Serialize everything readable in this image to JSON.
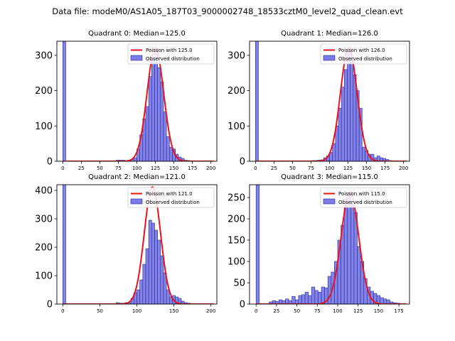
{
  "suptitle": "Data file: modeM0/AS1A05_187T03_9000002748_18533cztM0_level2_quad_clean.evt",
  "legend_labels": {
    "observed": "Observed distribution"
  },
  "colors": {
    "bar_fill": "#7b7bea",
    "bar_edge": "#2a2a8a",
    "poisson": "#e8141c"
  },
  "chart_data": [
    {
      "type": "bar",
      "title": "Quadrant 0: Median=125.0",
      "median": 125.0,
      "poisson_label": "Poisson with 125.0",
      "xlim": [
        -8,
        208
      ],
      "ylim": [
        0,
        340
      ],
      "xticks": [
        0,
        25,
        50,
        75,
        100,
        125,
        150,
        175,
        200
      ],
      "yticks": [
        0,
        100,
        200,
        300
      ],
      "bin_width": 4,
      "bins": [
        0,
        72,
        76,
        80,
        84,
        88,
        92,
        96,
        100,
        104,
        108,
        112,
        116,
        120,
        124,
        128,
        132,
        136,
        140,
        144,
        148,
        152,
        156,
        160,
        164,
        168,
        172
      ],
      "counts": [
        340,
        3,
        3,
        3,
        1,
        3,
        5,
        10,
        35,
        75,
        120,
        155,
        240,
        290,
        320,
        265,
        225,
        140,
        70,
        40,
        35,
        20,
        12,
        8,
        3,
        2,
        1
      ],
      "poisson_peak": 321
    },
    {
      "type": "bar",
      "title": "Quadrant 1: Median=126.0",
      "median": 126.0,
      "poisson_label": "Poisson with 126.0",
      "xlim": [
        -8,
        208
      ],
      "ylim": [
        0,
        340
      ],
      "xticks": [
        0,
        25,
        50,
        75,
        100,
        125,
        150,
        175,
        200
      ],
      "yticks": [
        0,
        100,
        200,
        300
      ],
      "bin_width": 4,
      "bins": [
        0,
        76,
        80,
        84,
        88,
        92,
        96,
        100,
        104,
        108,
        112,
        116,
        120,
        124,
        128,
        132,
        136,
        140,
        144,
        148,
        152,
        156,
        160,
        164,
        168,
        172,
        176,
        180
      ],
      "counts": [
        340,
        2,
        2,
        3,
        4,
        10,
        15,
        25,
        50,
        100,
        150,
        210,
        260,
        310,
        295,
        245,
        200,
        150,
        40,
        30,
        20,
        20,
        10,
        15,
        10,
        8,
        5,
        2
      ],
      "poisson_peak": 321
    },
    {
      "type": "bar",
      "title": "Quadrant 2: Median=121.0",
      "median": 121.0,
      "poisson_label": "Poisson with 121.0",
      "xlim": [
        -8,
        208
      ],
      "ylim": [
        0,
        420
      ],
      "xticks": [
        0,
        50,
        100,
        150,
        200
      ],
      "yticks": [
        0,
        100,
        200,
        300,
        400
      ],
      "bin_width": 4,
      "bins": [
        0,
        72,
        76,
        80,
        84,
        88,
        92,
        96,
        100,
        104,
        108,
        112,
        116,
        120,
        124,
        128,
        132,
        136,
        140,
        144,
        148,
        152,
        156,
        160,
        164,
        168
      ],
      "counts": [
        420,
        5,
        3,
        3,
        5,
        5,
        20,
        40,
        50,
        85,
        140,
        195,
        295,
        285,
        260,
        225,
        170,
        110,
        50,
        25,
        30,
        25,
        20,
        10,
        5,
        3
      ],
      "poisson_peak": 412
    },
    {
      "type": "bar",
      "title": "Quadrant 3: Median=115.0",
      "median": 115.0,
      "poisson_label": "Poisson with 115.0",
      "xlim": [
        -8,
        188
      ],
      "ylim": [
        0,
        280
      ],
      "xticks": [
        0,
        25,
        50,
        75,
        100,
        125,
        150,
        175
      ],
      "yticks": [
        0,
        50,
        100,
        150,
        200,
        250
      ],
      "bin_width": 4,
      "bins": [
        0,
        16,
        20,
        24,
        28,
        32,
        36,
        40,
        44,
        48,
        52,
        56,
        60,
        64,
        68,
        72,
        76,
        80,
        84,
        88,
        92,
        96,
        100,
        104,
        108,
        112,
        116,
        120,
        124,
        128,
        132,
        136,
        140,
        144,
        148,
        152,
        156,
        160,
        164,
        168,
        172
      ],
      "counts": [
        280,
        5,
        8,
        6,
        10,
        8,
        12,
        8,
        18,
        10,
        20,
        22,
        28,
        20,
        40,
        32,
        28,
        40,
        38,
        65,
        75,
        100,
        150,
        185,
        230,
        260,
        235,
        215,
        135,
        100,
        60,
        40,
        30,
        25,
        20,
        15,
        12,
        10,
        5,
        3,
        2
      ],
      "poisson_peak": 263
    }
  ]
}
